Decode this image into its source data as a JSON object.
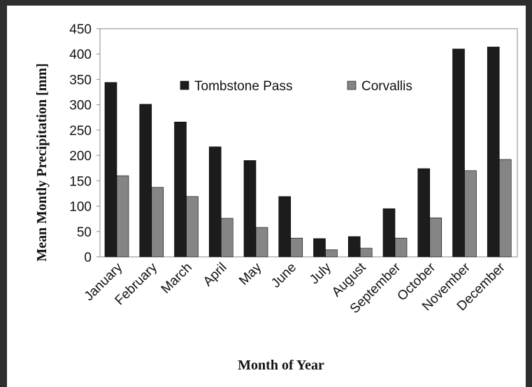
{
  "chart_data": {
    "type": "bar",
    "xlabel": "Month of Year",
    "ylabel": "Mean Montly Precipitation [mm]",
    "categories": [
      "January",
      "February",
      "March",
      "April",
      "May",
      "June",
      "July",
      "August",
      "September",
      "October",
      "November",
      "December"
    ],
    "series": [
      {
        "name": "Tombstone Pass",
        "color": "#1c1c1c",
        "values": [
          344,
          301,
          266,
          217,
          190,
          119,
          36,
          40,
          95,
          174,
          410,
          414
        ]
      },
      {
        "name": "Corvallis",
        "color": "#858585",
        "values": [
          160,
          137,
          119,
          76,
          58,
          37,
          14,
          17,
          37,
          77,
          170,
          192
        ]
      }
    ],
    "ylim": [
      0,
      450
    ],
    "yticks": [
      0,
      50,
      100,
      150,
      200,
      250,
      300,
      350,
      400,
      450
    ],
    "grid": false,
    "legend": "top"
  }
}
